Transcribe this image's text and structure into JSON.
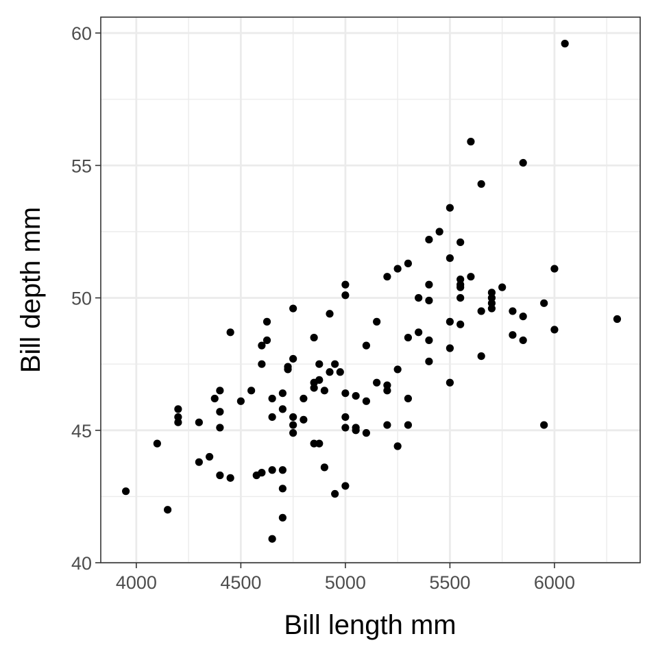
{
  "chart_data": {
    "type": "scatter",
    "title": "",
    "xlabel": "Bill length mm",
    "ylabel": "Bill depth mm",
    "xlim": [
      3830,
      6410
    ],
    "ylim": [
      40,
      60.6
    ],
    "x_ticks": [
      4000,
      4500,
      5000,
      5500,
      6000
    ],
    "x_tick_labels": [
      "4000",
      "4500",
      "5000",
      "5500",
      "6000"
    ],
    "y_ticks": [
      40,
      45,
      50,
      55,
      60
    ],
    "y_tick_labels": [
      "40",
      "45",
      "50",
      "55",
      "60"
    ],
    "grid": true,
    "point_color": "#000000",
    "points": [
      [
        3950,
        42.7
      ],
      [
        4100,
        44.5
      ],
      [
        4150,
        42.0
      ],
      [
        4200,
        45.8
      ],
      [
        4200,
        45.5
      ],
      [
        4200,
        45.3
      ],
      [
        4300,
        45.3
      ],
      [
        4300,
        43.8
      ],
      [
        4350,
        44.0
      ],
      [
        4375,
        46.2
      ],
      [
        4400,
        46.5
      ],
      [
        4400,
        45.7
      ],
      [
        4400,
        45.1
      ],
      [
        4400,
        43.3
      ],
      [
        4450,
        48.7
      ],
      [
        4450,
        43.2
      ],
      [
        4500,
        46.1
      ],
      [
        4550,
        46.5
      ],
      [
        4575,
        43.3
      ],
      [
        4600,
        48.2
      ],
      [
        4600,
        47.5
      ],
      [
        4600,
        43.4
      ],
      [
        4625,
        49.1
      ],
      [
        4625,
        48.4
      ],
      [
        4650,
        46.2
      ],
      [
        4650,
        45.5
      ],
      [
        4650,
        43.5
      ],
      [
        4650,
        40.9
      ],
      [
        4700,
        46.4
      ],
      [
        4700,
        45.8
      ],
      [
        4700,
        43.5
      ],
      [
        4700,
        42.8
      ],
      [
        4700,
        41.7
      ],
      [
        4725,
        47.4
      ],
      [
        4725,
        47.3
      ],
      [
        4750,
        49.6
      ],
      [
        4750,
        47.7
      ],
      [
        4750,
        45.5
      ],
      [
        4750,
        45.2
      ],
      [
        4750,
        44.9
      ],
      [
        4800,
        46.2
      ],
      [
        4800,
        45.4
      ],
      [
        4850,
        48.5
      ],
      [
        4850,
        46.8
      ],
      [
        4850,
        46.6
      ],
      [
        4850,
        44.5
      ],
      [
        4875,
        47.5
      ],
      [
        4875,
        46.9
      ],
      [
        4875,
        44.5
      ],
      [
        4900,
        46.5
      ],
      [
        4900,
        43.6
      ],
      [
        4925,
        49.4
      ],
      [
        4925,
        47.2
      ],
      [
        4950,
        47.5
      ],
      [
        4950,
        42.6
      ],
      [
        4975,
        47.2
      ],
      [
        5000,
        50.5
      ],
      [
        5000,
        50.1
      ],
      [
        5000,
        46.4
      ],
      [
        5000,
        45.5
      ],
      [
        5000,
        45.1
      ],
      [
        5000,
        42.9
      ],
      [
        5050,
        46.3
      ],
      [
        5050,
        45.1
      ],
      [
        5050,
        45.0
      ],
      [
        5100,
        48.2
      ],
      [
        5100,
        46.1
      ],
      [
        5100,
        44.9
      ],
      [
        5150,
        49.1
      ],
      [
        5150,
        46.8
      ],
      [
        5200,
        50.8
      ],
      [
        5200,
        46.7
      ],
      [
        5200,
        46.5
      ],
      [
        5200,
        45.2
      ],
      [
        5250,
        51.1
      ],
      [
        5250,
        47.3
      ],
      [
        5250,
        44.4
      ],
      [
        5300,
        51.3
      ],
      [
        5300,
        48.5
      ],
      [
        5300,
        46.2
      ],
      [
        5300,
        45.2
      ],
      [
        5350,
        50.0
      ],
      [
        5350,
        48.7
      ],
      [
        5400,
        52.2
      ],
      [
        5400,
        50.5
      ],
      [
        5400,
        49.9
      ],
      [
        5400,
        48.4
      ],
      [
        5400,
        47.6
      ],
      [
        5450,
        52.5
      ],
      [
        5500,
        53.4
      ],
      [
        5500,
        51.5
      ],
      [
        5500,
        49.1
      ],
      [
        5500,
        48.1
      ],
      [
        5500,
        46.8
      ],
      [
        5550,
        52.1
      ],
      [
        5550,
        50.7
      ],
      [
        5550,
        50.5
      ],
      [
        5550,
        50.4
      ],
      [
        5550,
        50.0
      ],
      [
        5550,
        49.0
      ],
      [
        5600,
        55.9
      ],
      [
        5600,
        50.8
      ],
      [
        5650,
        54.3
      ],
      [
        5650,
        49.5
      ],
      [
        5650,
        47.8
      ],
      [
        5700,
        50.2
      ],
      [
        5700,
        50.0
      ],
      [
        5700,
        49.8
      ],
      [
        5700,
        49.6
      ],
      [
        5750,
        50.4
      ],
      [
        5800,
        49.5
      ],
      [
        5800,
        48.6
      ],
      [
        5850,
        55.1
      ],
      [
        5850,
        49.3
      ],
      [
        5850,
        48.4
      ],
      [
        5950,
        49.8
      ],
      [
        5950,
        45.2
      ],
      [
        6000,
        51.1
      ],
      [
        6000,
        48.8
      ],
      [
        6050,
        59.6
      ],
      [
        6300,
        49.2
      ]
    ]
  }
}
